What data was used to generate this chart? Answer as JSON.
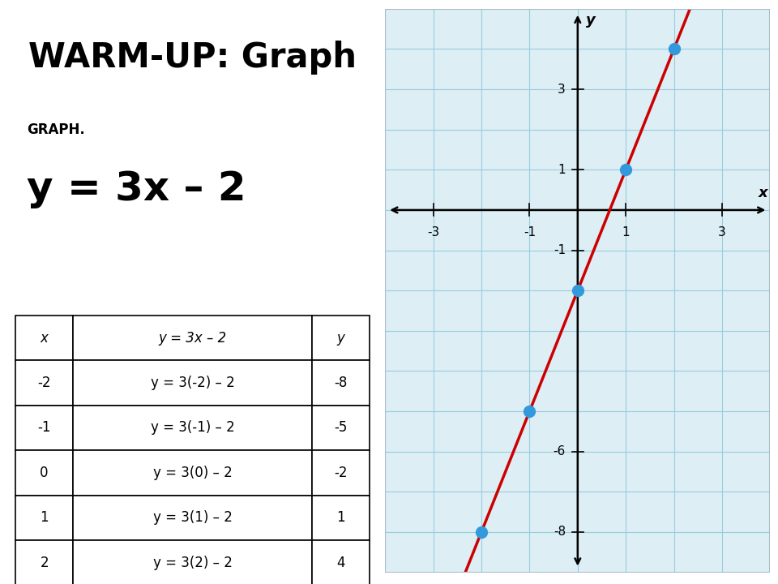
{
  "title": "WARM-UP: Graph",
  "subtitle": "GRAPH.",
  "equation_display": "y = 3x – 2",
  "table_headers": [
    "x",
    "y = 3x – 2",
    "y"
  ],
  "table_rows": [
    [
      "-2",
      "y = 3(-2) – 2",
      "-8"
    ],
    [
      "-1",
      "y = 3(-1) – 2",
      "-5"
    ],
    [
      "0",
      "y = 3(0) – 2",
      "-2"
    ],
    [
      "1",
      "y = 3(1) – 2",
      "1"
    ],
    [
      "2",
      "y = 3(2) – 2",
      "4"
    ]
  ],
  "points_x": [
    -2,
    -1,
    0,
    1,
    2
  ],
  "points_y": [
    -8,
    -5,
    -2,
    1,
    4
  ],
  "x_data_min": -4,
  "x_data_max": 4,
  "y_data_min": -9,
  "y_data_max": 5,
  "x_ticks_labeled": [
    -3,
    -1,
    1,
    3
  ],
  "y_ticks_labeled": [
    -8,
    -6,
    -1,
    1,
    3
  ],
  "line_color": "#cc0000",
  "point_color": "#3399dd",
  "grid_color": "#99ccdd",
  "bg_color": "#ffffff",
  "graph_bg": "#ddeef5"
}
